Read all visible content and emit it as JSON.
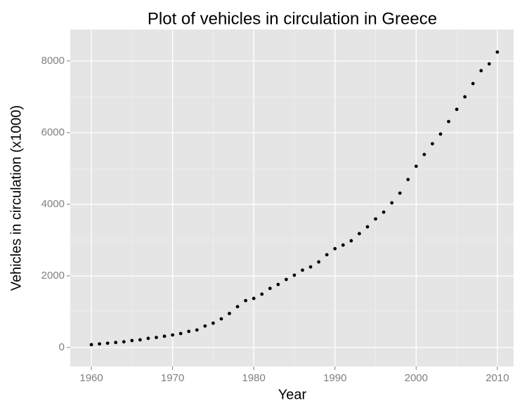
{
  "chart_data": {
    "type": "scatter",
    "title": "Plot of vehicles in circulation in Greece",
    "x_label": "Year",
    "y_label": "Vehicles in circulation (x1000)",
    "x": [
      1960,
      1961,
      1962,
      1963,
      1964,
      1965,
      1966,
      1967,
      1968,
      1969,
      1970,
      1971,
      1972,
      1973,
      1974,
      1975,
      1976,
      1977,
      1978,
      1979,
      1980,
      1981,
      1982,
      1983,
      1984,
      1985,
      1986,
      1987,
      1988,
      1989,
      1990,
      1991,
      1992,
      1993,
      1994,
      1995,
      1996,
      1997,
      1998,
      1999,
      2000,
      2001,
      2002,
      2003,
      2004,
      2005,
      2006,
      2007,
      2008,
      2009,
      2010
    ],
    "values": [
      80,
      100,
      120,
      140,
      160,
      195,
      215,
      255,
      280,
      315,
      350,
      390,
      450,
      490,
      600,
      680,
      800,
      950,
      1140,
      1310,
      1370,
      1490,
      1650,
      1760,
      1900,
      2020,
      2160,
      2250,
      2390,
      2590,
      2760,
      2860,
      2980,
      3180,
      3370,
      3590,
      3780,
      4040,
      4310,
      4690,
      5060,
      5390,
      5690,
      5960,
      6310,
      6650,
      7000,
      7370,
      7730,
      7920,
      8250
    ],
    "color": "#000000",
    "xlim": [
      1957.4,
      2012.0
    ],
    "xticks": [
      1960,
      1970,
      1980,
      1990,
      2000,
      2010
    ],
    "ylim": [
      -530,
      8880
    ],
    "yticks": [
      0,
      2000,
      4000,
      6000,
      8000
    ],
    "grid": true
  }
}
